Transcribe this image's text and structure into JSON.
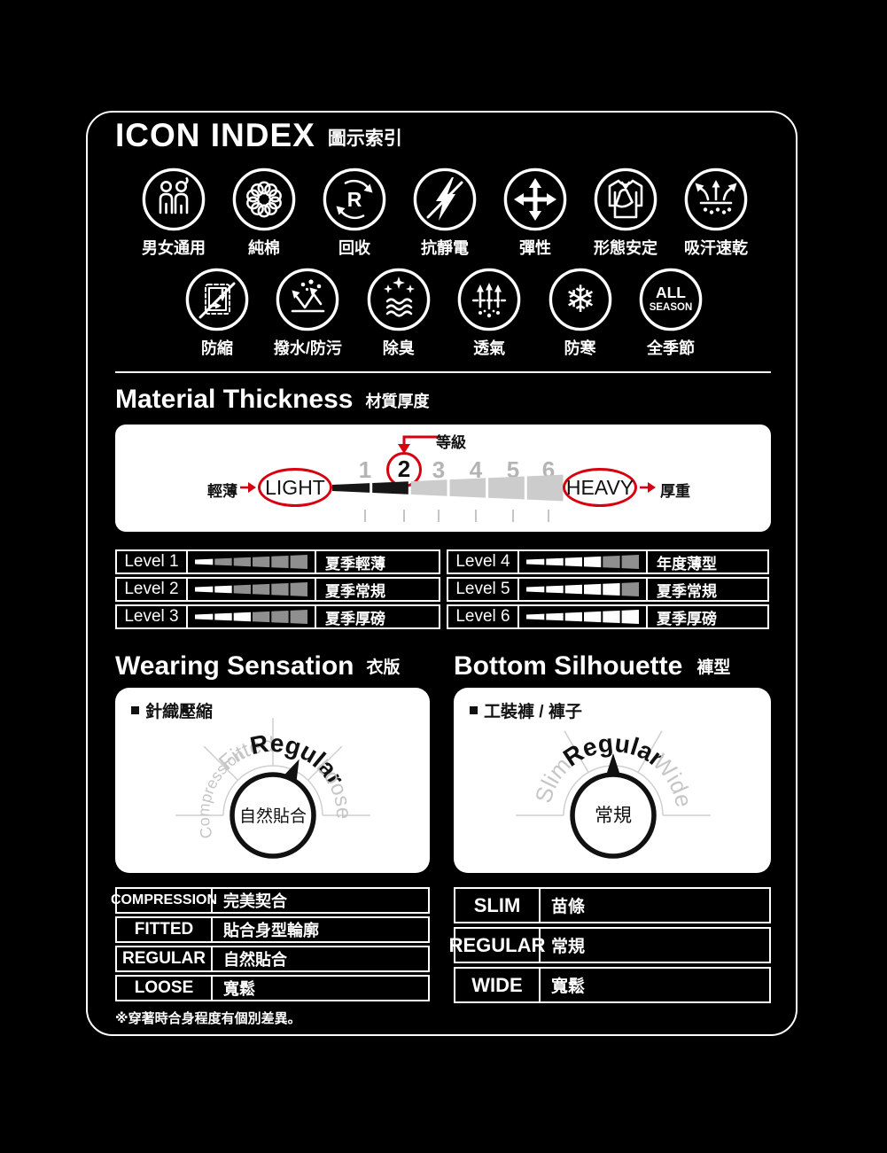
{
  "colors": {
    "background": "#000000",
    "accent_red": "#d7000f",
    "panel": "#ffffff"
  },
  "icon_index": {
    "title": "ICON INDEX",
    "subtitle": "圖示索引",
    "row1": [
      {
        "icon": "unisex-icon",
        "label": "男女通用"
      },
      {
        "icon": "pure-cotton-icon",
        "label": "純棉"
      },
      {
        "icon": "recycle-icon",
        "label": "回收",
        "icon_letter": "R"
      },
      {
        "icon": "anti-static-icon",
        "label": "抗靜電"
      },
      {
        "icon": "stretch-icon",
        "label": "彈性"
      },
      {
        "icon": "shape-retention-icon",
        "label": "形態安定"
      },
      {
        "icon": "quick-dry-icon",
        "label": "吸汗速乾"
      }
    ],
    "row2": [
      {
        "icon": "anti-shrink-icon",
        "label": "防縮"
      },
      {
        "icon": "water-repellent-icon",
        "label": "撥水/防污"
      },
      {
        "icon": "deodorant-icon",
        "label": "除臭"
      },
      {
        "icon": "breathable-icon",
        "label": "透氣"
      },
      {
        "icon": "cold-protection-icon",
        "label": "防寒"
      },
      {
        "icon": "all-season-icon",
        "label": "全季節",
        "icon_text": [
          "ALL",
          "SEASON"
        ]
      }
    ]
  },
  "material_thickness": {
    "title": "Material Thickness",
    "subtitle": "材質厚度",
    "grade_label": "等級",
    "scale_numbers": [
      "1",
      "2",
      "3",
      "4",
      "5",
      "6"
    ],
    "selected_level": "2",
    "light_cn": "輕薄",
    "light_label": "LIGHT",
    "heavy_label": "HEAVY",
    "heavy_cn": "厚重",
    "levels": [
      {
        "name": "Level 1",
        "filled": 1,
        "desc": "夏季輕薄"
      },
      {
        "name": "Level 2",
        "filled": 2,
        "desc": "夏季常規"
      },
      {
        "name": "Level 3",
        "filled": 3,
        "desc": "夏季厚磅"
      },
      {
        "name": "Level 4",
        "filled": 4,
        "desc": "年度薄型"
      },
      {
        "name": "Level 5",
        "filled": 5,
        "desc": "夏季常規"
      },
      {
        "name": "Level 6",
        "filled": 6,
        "desc": "夏季厚磅"
      }
    ]
  },
  "wearing_sensation": {
    "title": "Wearing Sensation",
    "subtitle": "衣版",
    "category": "針織壓縮",
    "dial_labels": [
      "Compression",
      "Fitted",
      "Regular",
      "Loose"
    ],
    "selected": "Regular",
    "knob_text": "自然貼合",
    "table": [
      {
        "key": "COMPRESSION",
        "value": "完美契合"
      },
      {
        "key": "FITTED",
        "value": "貼合身型輪廓"
      },
      {
        "key": "REGULAR",
        "value": "自然貼合"
      },
      {
        "key": "LOOSE",
        "value": "寬鬆"
      }
    ],
    "footnote": "※穿著時合身程度有個別差異。"
  },
  "bottom_silhouette": {
    "title": "Bottom Silhouette",
    "subtitle": "褲型",
    "category": "工裝褲 / 褲子",
    "dial_labels": [
      "Slim",
      "Regular",
      "Wide"
    ],
    "selected": "Regular",
    "knob_text": "常規",
    "table": [
      {
        "key": "SLIM",
        "value": "苗條"
      },
      {
        "key": "REGULAR",
        "value": "常規"
      },
      {
        "key": "WIDE",
        "value": "寬鬆"
      }
    ]
  }
}
